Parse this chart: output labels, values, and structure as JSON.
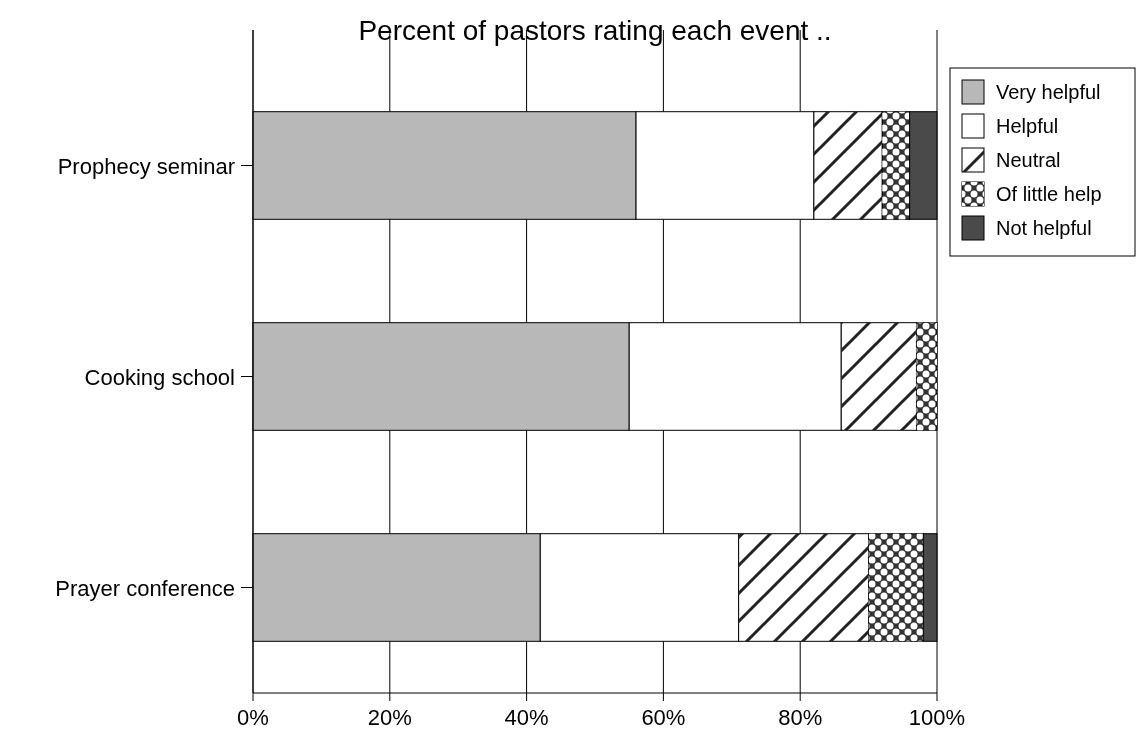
{
  "chart_data": {
    "type": "bar",
    "title": "Percent of pastors rating each event ..",
    "orientation": "horizontal",
    "stacked": true,
    "categories": [
      "Prophecy seminar",
      "Cooking school",
      "Prayer conference"
    ],
    "series": [
      {
        "name": "Very helpful",
        "color": "#b8b8b8",
        "values": [
          56,
          55,
          42
        ]
      },
      {
        "name": "Helpful",
        "color": "#ffffff",
        "values": [
          26,
          31,
          29
        ]
      },
      {
        "name": "Neutral",
        "color": "#ffffff",
        "values": [
          10,
          11,
          19
        ]
      },
      {
        "name": "Of little help",
        "color": "#333333",
        "values": [
          4,
          3,
          8
        ]
      },
      {
        "name": "Not helpful",
        "color": "#4a4a4a",
        "values": [
          4,
          0,
          2
        ]
      }
    ],
    "xlim": [
      0,
      100
    ],
    "xticks": [
      {
        "value": 0,
        "label": "0%"
      },
      {
        "value": 20,
        "label": "20%"
      },
      {
        "value": 40,
        "label": "40%"
      },
      {
        "value": 60,
        "label": "60%"
      },
      {
        "value": 80,
        "label": "80%"
      },
      {
        "value": 100,
        "label": "100%"
      }
    ],
    "grid": "x",
    "legend": "right"
  }
}
